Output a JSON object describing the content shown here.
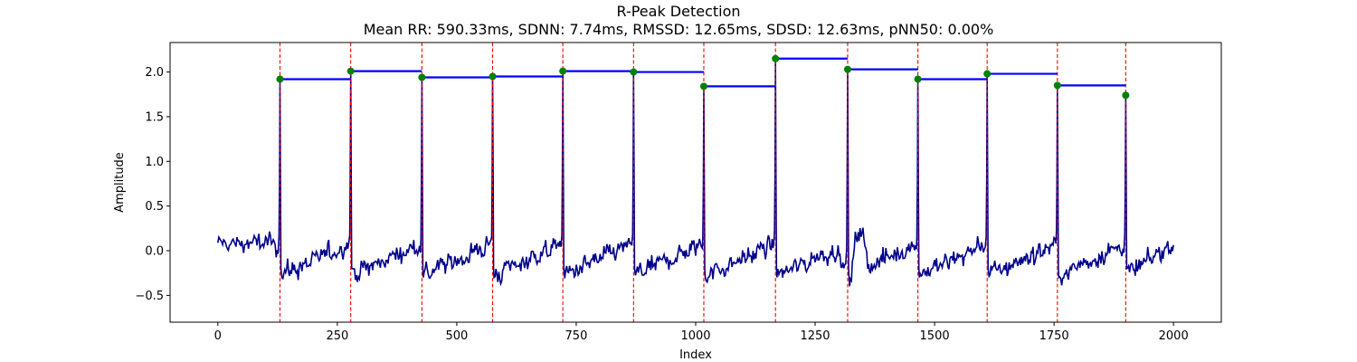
{
  "chart_data": {
    "type": "line",
    "title": "R-Peak Detection",
    "subtitle": "Mean RR: 590.33ms, SDNN: 7.74ms, RMSSD: 12.65ms, SDSD: 12.63ms, pNN50: 0.00%",
    "xlabel": "Index",
    "ylabel": "Amplitude",
    "xlim": [
      -100,
      2100
    ],
    "ylim": [
      -0.8,
      2.33
    ],
    "x_ticks": [
      0,
      250,
      500,
      750,
      1000,
      1250,
      1500,
      1750,
      2000
    ],
    "y_ticks": [
      -0.5,
      0.0,
      0.5,
      1.0,
      1.5,
      2.0
    ],
    "y_tick_labels": [
      "−0.5",
      "0.0",
      "0.5",
      "1.0",
      "1.5",
      "2.0"
    ],
    "grid": false,
    "colors": {
      "signal": "#00008b",
      "peak_marker": "#008000",
      "peak_line": "#ff0000",
      "rr_segment": "#0000ff"
    },
    "signal_x_range": [
      0,
      2000
    ],
    "r_peaks": [
      {
        "x": 130,
        "y": 1.92
      },
      {
        "x": 278,
        "y": 2.01
      },
      {
        "x": 427,
        "y": 1.94
      },
      {
        "x": 575,
        "y": 1.95
      },
      {
        "x": 722,
        "y": 2.01
      },
      {
        "x": 870,
        "y": 2.0
      },
      {
        "x": 1017,
        "y": 1.84
      },
      {
        "x": 1167,
        "y": 2.15
      },
      {
        "x": 1318,
        "y": 2.03
      },
      {
        "x": 1465,
        "y": 1.92
      },
      {
        "x": 1610,
        "y": 1.98
      },
      {
        "x": 1757,
        "y": 1.85
      },
      {
        "x": 1900,
        "y": 1.74
      }
    ]
  }
}
